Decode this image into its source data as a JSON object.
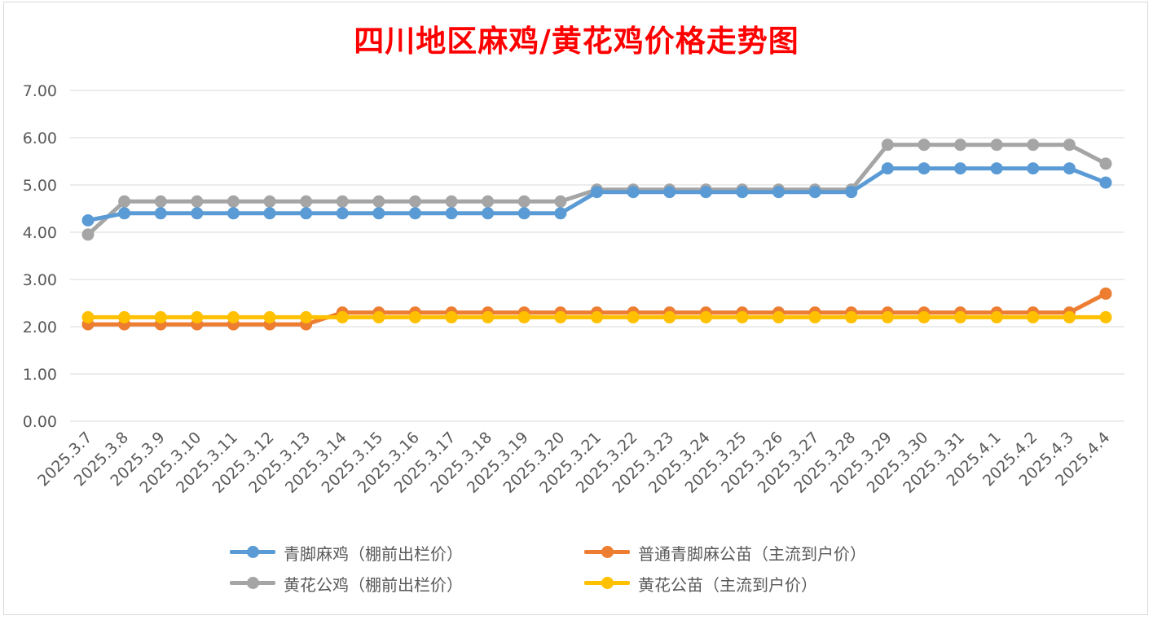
{
  "chart_data": {
    "type": "line",
    "title": "四川地区麻鸡/黄花鸡价格走势图",
    "xlabel": "",
    "ylabel": "",
    "ylim": [
      0,
      7
    ],
    "yticks": [
      "0.00",
      "1.00",
      "2.00",
      "3.00",
      "4.00",
      "5.00",
      "6.00",
      "7.00"
    ],
    "grid": true,
    "legend_position": "bottom",
    "categories": [
      "2025.3.7",
      "2025.3.8",
      "2025.3.9",
      "2025.3.10",
      "2025.3.11",
      "2025.3.12",
      "2025.3.13",
      "2025.3.14",
      "2025.3.15",
      "2025.3.16",
      "2025.3.17",
      "2025.3.18",
      "2025.3.19",
      "2025.3.20",
      "2025.3.21",
      "2025.3.22",
      "2025.3.23",
      "2025.3.24",
      "2025.3.25",
      "2025.3.26",
      "2025.3.27",
      "2025.3.28",
      "2025.3.29",
      "2025.3.30",
      "2025.3.31",
      "2025.4.1",
      "2025.4.2",
      "2025.4.3",
      "2025.4.4"
    ],
    "series": [
      {
        "name": "青脚麻鸡（棚前出栏价）",
        "color": "#5b9bd5",
        "values": [
          4.25,
          4.4,
          4.4,
          4.4,
          4.4,
          4.4,
          4.4,
          4.4,
          4.4,
          4.4,
          4.4,
          4.4,
          4.4,
          4.4,
          4.85,
          4.85,
          4.85,
          4.85,
          4.85,
          4.85,
          4.85,
          4.85,
          5.35,
          5.35,
          5.35,
          5.35,
          5.35,
          5.35,
          5.05
        ]
      },
      {
        "name": "普通青脚麻公苗（主流到户价）",
        "color": "#ed7d31",
        "values": [
          2.05,
          2.05,
          2.05,
          2.05,
          2.05,
          2.05,
          2.05,
          2.3,
          2.3,
          2.3,
          2.3,
          2.3,
          2.3,
          2.3,
          2.3,
          2.3,
          2.3,
          2.3,
          2.3,
          2.3,
          2.3,
          2.3,
          2.3,
          2.3,
          2.3,
          2.3,
          2.3,
          2.3,
          2.7
        ]
      },
      {
        "name": "黄花公鸡（棚前出栏价）",
        "color": "#a5a5a5",
        "values": [
          3.95,
          4.65,
          4.65,
          4.65,
          4.65,
          4.65,
          4.65,
          4.65,
          4.65,
          4.65,
          4.65,
          4.65,
          4.65,
          4.65,
          4.9,
          4.9,
          4.9,
          4.9,
          4.9,
          4.9,
          4.9,
          4.9,
          5.85,
          5.85,
          5.85,
          5.85,
          5.85,
          5.85,
          5.45
        ]
      },
      {
        "name": "黄花公苗（主流到户价）",
        "color": "#ffc000",
        "values": [
          2.2,
          2.2,
          2.2,
          2.2,
          2.2,
          2.2,
          2.2,
          2.2,
          2.2,
          2.2,
          2.2,
          2.2,
          2.2,
          2.2,
          2.2,
          2.2,
          2.2,
          2.2,
          2.2,
          2.2,
          2.2,
          2.2,
          2.2,
          2.2,
          2.2,
          2.2,
          2.2,
          2.2,
          2.2
        ]
      }
    ],
    "draw_order": [
      1,
      3,
      2,
      0
    ]
  },
  "legend": {
    "items": [
      {
        "label": "青脚麻鸡（棚前出栏价）",
        "color": "#5b9bd5"
      },
      {
        "label": "普通青脚麻公苗（主流到户价）",
        "color": "#ed7d31"
      },
      {
        "label": "黄花公鸡（棚前出栏价）",
        "color": "#a5a5a5"
      },
      {
        "label": "黄花公苗（主流到户价）",
        "color": "#ffc000"
      }
    ]
  }
}
